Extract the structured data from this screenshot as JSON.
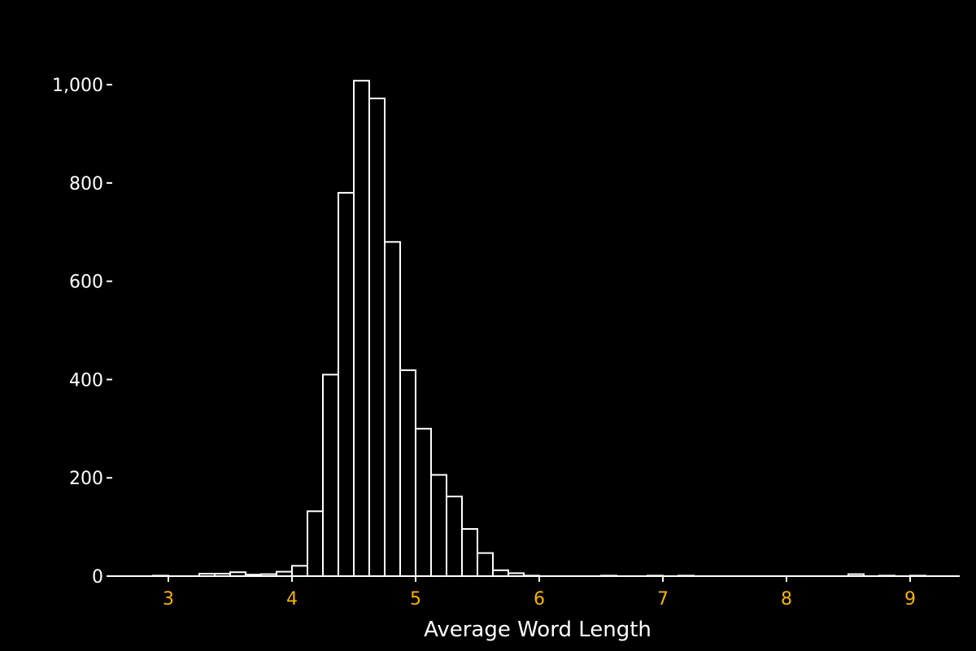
{
  "chart_data": {
    "type": "bar",
    "xlabel": "Average Word Length",
    "ylabel": "",
    "bin_width": 0.125,
    "xlim": [
      2.625,
      9.4
    ],
    "ylim": [
      0,
      1010
    ],
    "x_ticks": [
      3,
      4,
      5,
      6,
      7,
      8,
      9
    ],
    "x_tick_labels": [
      "3",
      "4",
      "5",
      "6",
      "7",
      "8",
      "9"
    ],
    "y_ticks": [
      0,
      200,
      400,
      600,
      800,
      1000
    ],
    "y_tick_labels": [
      "0",
      "200",
      "400",
      "600",
      "800",
      "1,000"
    ],
    "grid": false,
    "colors": {
      "background": "#000000",
      "bar_fill": "#000000",
      "bar_stroke": "#ffffff",
      "axis": "#ffffff",
      "x_tick_label": "#f5b400",
      "y_tick_label": "#ffffff"
    },
    "bins": [
      {
        "x0": 2.875,
        "value": 1
      },
      {
        "x0": 3.25,
        "value": 5
      },
      {
        "x0": 3.375,
        "value": 5
      },
      {
        "x0": 3.5,
        "value": 8
      },
      {
        "x0": 3.625,
        "value": 3
      },
      {
        "x0": 3.75,
        "value": 4
      },
      {
        "x0": 3.875,
        "value": 9
      },
      {
        "x0": 4.0,
        "value": 21
      },
      {
        "x0": 4.125,
        "value": 132
      },
      {
        "x0": 4.25,
        "value": 410
      },
      {
        "x0": 4.375,
        "value": 780
      },
      {
        "x0": 4.5,
        "value": 1008
      },
      {
        "x0": 4.625,
        "value": 972
      },
      {
        "x0": 4.75,
        "value": 680
      },
      {
        "x0": 4.875,
        "value": 419
      },
      {
        "x0": 5.0,
        "value": 300
      },
      {
        "x0": 5.125,
        "value": 206
      },
      {
        "x0": 5.25,
        "value": 162
      },
      {
        "x0": 5.375,
        "value": 96
      },
      {
        "x0": 5.5,
        "value": 47
      },
      {
        "x0": 5.625,
        "value": 12
      },
      {
        "x0": 5.75,
        "value": 6
      },
      {
        "x0": 5.875,
        "value": 1
      },
      {
        "x0": 6.5,
        "value": 1
      },
      {
        "x0": 6.875,
        "value": 1
      },
      {
        "x0": 7.125,
        "value": 1
      },
      {
        "x0": 8.5,
        "value": 4
      },
      {
        "x0": 8.75,
        "value": 1
      },
      {
        "x0": 9.0,
        "value": 1
      }
    ]
  }
}
